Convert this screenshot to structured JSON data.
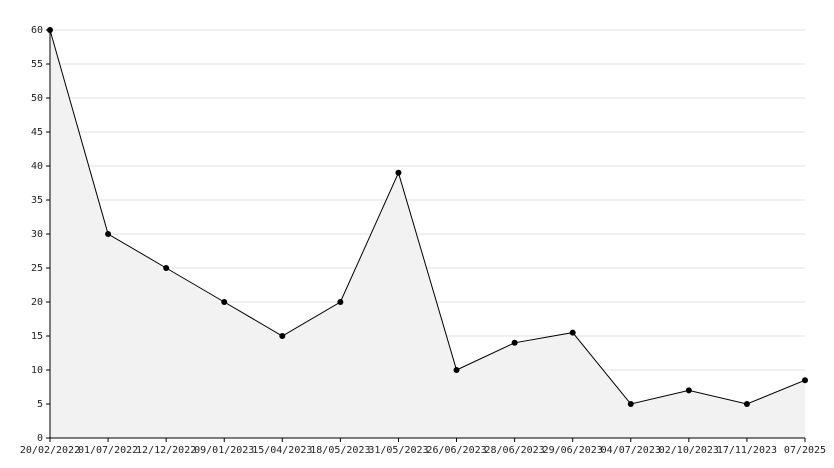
{
  "chart_data": {
    "type": "line",
    "categories": [
      "20/02/2022",
      "01/07/2022",
      "12/12/2022",
      "09/01/2023",
      "15/04/2023",
      "18/05/2023",
      "31/05/2023",
      "26/06/2023",
      "28/06/2023",
      "29/06/2023",
      "04/07/2023",
      "02/10/2023",
      "17/11/2023",
      "07/2025"
    ],
    "values": [
      60,
      30,
      25,
      20,
      15,
      20,
      39,
      10,
      14,
      15.5,
      5,
      7,
      5,
      8.5
    ],
    "color": "#000000",
    "fill": "#f2f2f2",
    "ylim": [
      0,
      60
    ],
    "yticks": [
      0,
      5,
      10,
      15,
      20,
      25,
      30,
      35,
      40,
      45,
      50,
      55,
      60
    ],
    "grid": true
  }
}
